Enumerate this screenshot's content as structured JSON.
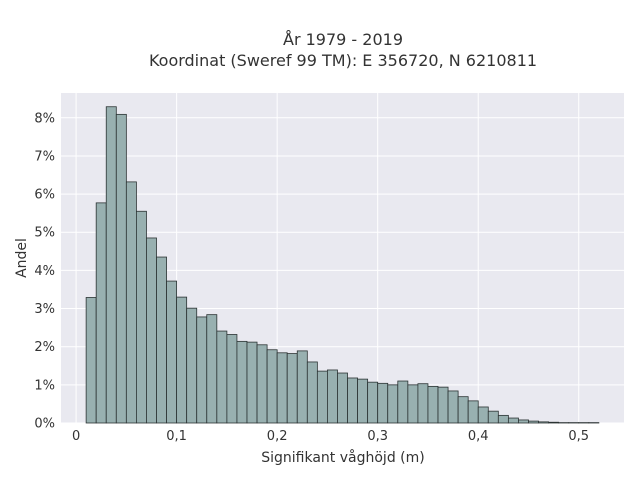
{
  "chart_data": {
    "type": "bar",
    "title_line1": "År 1979 - 2019",
    "title_line2": "Koordinat (Sweref 99 TM): E 356720, N 6210811",
    "xlabel": "Signifikant våghöjd (m)",
    "ylabel": "Andel",
    "xlim": [
      -0.015,
      0.545
    ],
    "ylim": [
      0,
      0.0865
    ],
    "bin_width": 0.01,
    "bin_start": 0.01,
    "x_ticks": [
      0,
      0.1,
      0.2,
      0.3,
      0.4,
      0.5
    ],
    "x_tick_labels": [
      "0",
      "0,1",
      "0,2",
      "0,3",
      "0,4",
      "0,5"
    ],
    "y_ticks": [
      0,
      0.01,
      0.02,
      0.03,
      0.04,
      0.05,
      0.06,
      0.07,
      0.08
    ],
    "y_tick_labels": [
      "0%",
      "1%",
      "2%",
      "3%",
      "4%",
      "5%",
      "6%",
      "7%",
      "8%"
    ],
    "values": [
      0.0329,
      0.0577,
      0.0829,
      0.0809,
      0.0632,
      0.0555,
      0.0485,
      0.0435,
      0.0372,
      0.033,
      0.0301,
      0.0278,
      0.0284,
      0.0241,
      0.0232,
      0.0214,
      0.0212,
      0.0205,
      0.0192,
      0.0184,
      0.0182,
      0.0189,
      0.016,
      0.0136,
      0.0139,
      0.0131,
      0.0118,
      0.0115,
      0.0107,
      0.0104,
      0.01,
      0.011,
      0.01,
      0.0103,
      0.0096,
      0.0094,
      0.0084,
      0.0069,
      0.0058,
      0.0042,
      0.0031,
      0.002,
      0.0013,
      0.0008,
      0.0005,
      0.0003,
      0.0002,
      0.0001,
      0.0001,
      0.0001,
      0.0001
    ],
    "grid": true,
    "bar_fill": "#98b0b0",
    "bar_stroke": "#2b3333",
    "plot_bg": "#e9e9f0",
    "grid_color": "#ffffff"
  }
}
